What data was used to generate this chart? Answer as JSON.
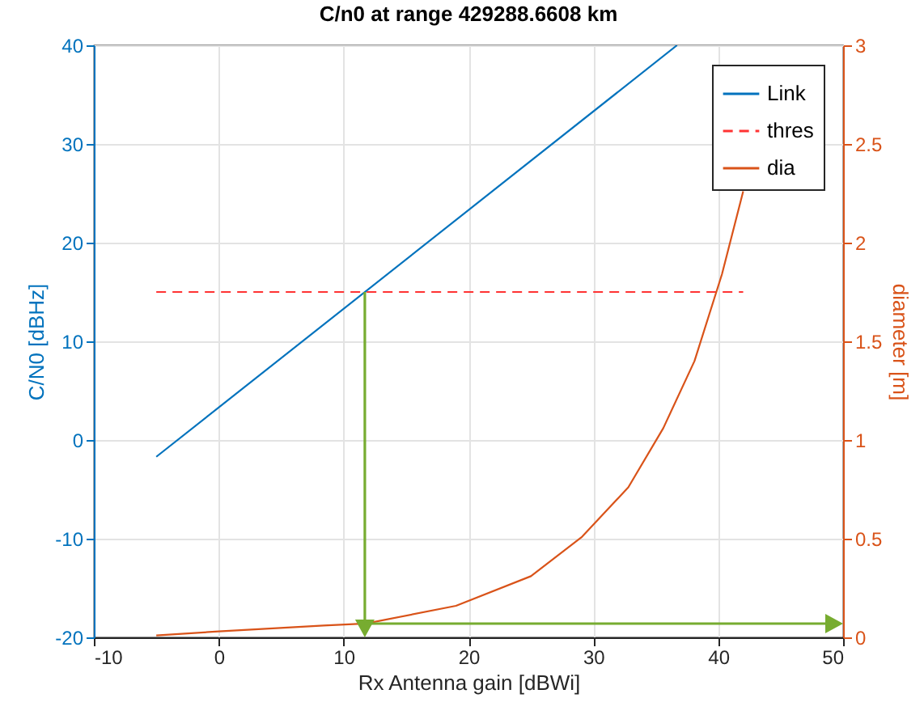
{
  "chart_data": {
    "type": "line",
    "title": "C/n0 at range 429288.6608 km",
    "xlabel": "Rx Antenna gain [dBWi]",
    "ylabel": "C/N0 [dBHz]",
    "y2label": "diameter [m]",
    "xlim": [
      -10,
      50
    ],
    "xticks": [
      -10,
      0,
      10,
      20,
      30,
      40,
      50
    ],
    "ylim": [
      -20,
      40
    ],
    "yticks": [
      -20,
      -10,
      0,
      10,
      20,
      30,
      40
    ],
    "y2lim": [
      0,
      3
    ],
    "y2ticks": [
      0,
      0.5,
      1,
      1.5,
      2,
      2.5,
      3
    ],
    "grid": true,
    "legend": "top right",
    "series": [
      {
        "name": "Link",
        "color": "#0072bd",
        "x": [
          -5,
          36.7
        ],
        "values": [
          -1.7,
          40
        ]
      },
      {
        "name": "thres",
        "color": "#ff3333",
        "line_style": "dashed",
        "x": [
          -5,
          42
        ],
        "values": [
          15,
          15
        ]
      },
      {
        "name": "dia",
        "color": "#d95319",
        "axis": "y2",
        "x": [
          -5,
          0,
          8.4,
          11.8,
          19,
          25,
          29.1,
          32.8,
          35.6,
          38.1,
          40.3,
          42
        ],
        "values": [
          0.01,
          0.03,
          0.06,
          0.07,
          0.16,
          0.31,
          0.51,
          0.76,
          1.06,
          1.4,
          1.84,
          2.26
        ]
      }
    ]
  }
}
